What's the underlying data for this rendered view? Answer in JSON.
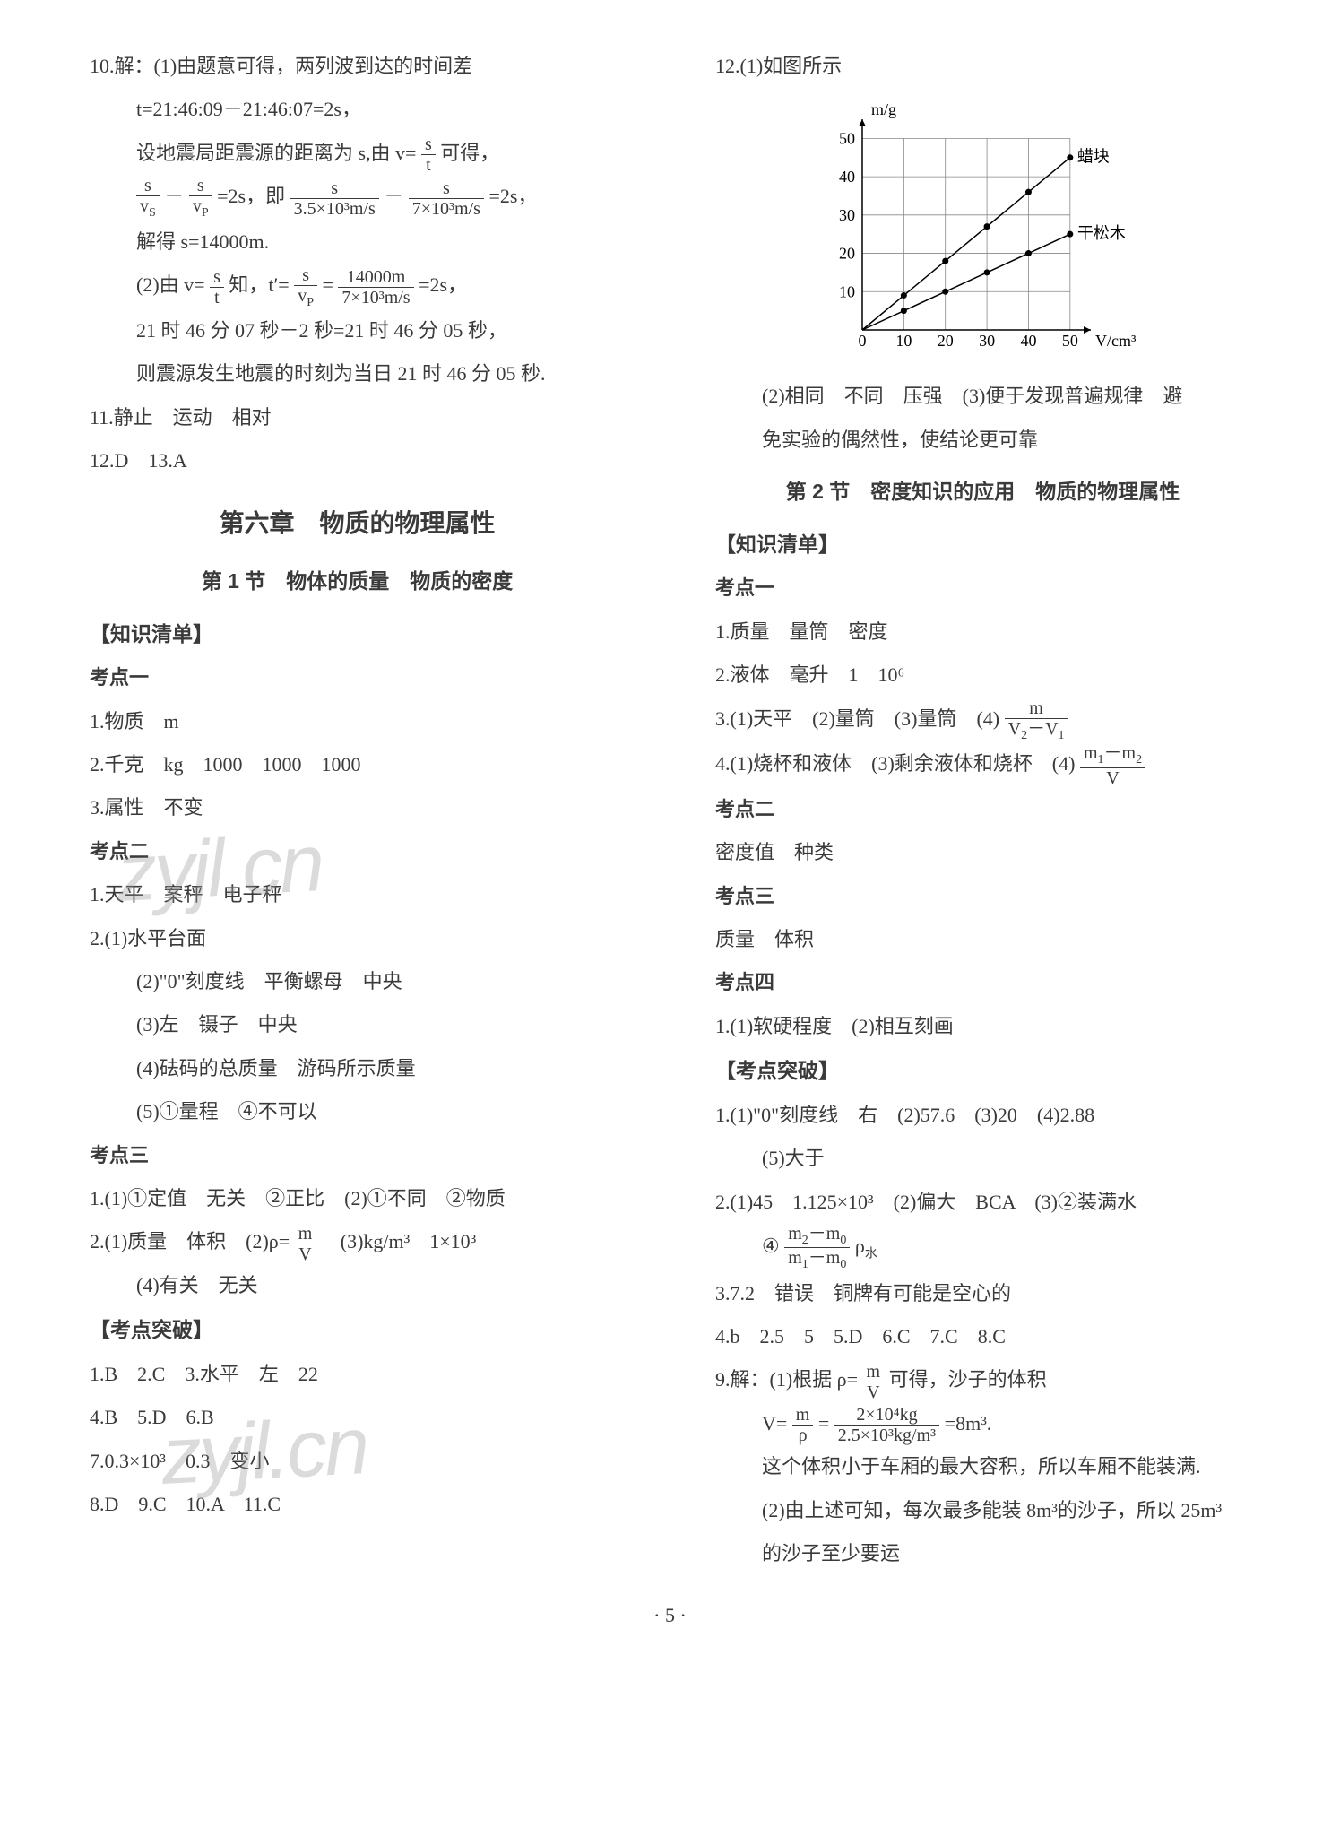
{
  "left": {
    "q10_intro": "10.解：(1)由题意可得，两列波到达的时间差",
    "q10_t": "t=21:46:09－21:46:07=2s，",
    "q10_set": "设地震局距震源的距离为 s,由 v=",
    "q10_set2": " 可得，",
    "q10_eq1_tail": "=2s，即",
    "q10_eq2_tail": "=2s，",
    "q10_solve": "解得 s=14000m.",
    "q10_p2a": "(2)由 v=",
    "q10_p2b": " 知，t′=",
    "q10_p2c": "=",
    "q10_p2d": "=2s，",
    "q10_time1": "21 时 46 分 07 秒－2 秒=21 时 46 分 05 秒，",
    "q10_time2": "则震源发生地震的时刻为当日 21 时 46 分 05 秒.",
    "q11": "11.静止　运动　相对",
    "q12_13": "12.D　13.A",
    "chapter": "第六章　物质的物理属性",
    "section1": "第 1 节　物体的质量　物质的密度",
    "zsqd": "【知识清单】",
    "kd1": "考点一",
    "k1_1": "1.物质　m",
    "k1_2": "2.千克　kg　1000　1000　1000",
    "k1_3": "3.属性　不变",
    "kd2": "考点二",
    "k2_1": "1.天平　案秤　电子秤",
    "k2_2": "2.(1)水平台面",
    "k2_2_2": "(2)\"0\"刻度线　平衡螺母　中央",
    "k2_2_3": "(3)左　镊子　中央",
    "k2_2_4": "(4)砝码的总质量　游码所示质量",
    "k2_2_5": "(5)①量程　④不可以",
    "kd3": "考点三",
    "k3_1": "1.(1)①定值　无关　②正比　(2)①不同　②物质",
    "k3_2a": "2.(1)质量　体积　(2)ρ=",
    "k3_2b": "　(3)kg/m³　1×10³",
    "k3_2_4": "(4)有关　无关",
    "kdtp": "【考点突破】",
    "t1_3": "1.B　2.C　3.水平　左　22",
    "t4_6": "4.B　5.D　6.B",
    "t7": "7.0.3×10³　0.3　变小",
    "t8_11": "8.D　9.C　10.A　11.C"
  },
  "right": {
    "q12": "12.(1)如图所示",
    "chart": {
      "type": "scatter-line",
      "xlabel": "V/cm³",
      "ylabel": "m/g",
      "xlim": [
        0,
        55
      ],
      "ylim": [
        0,
        55
      ],
      "xticks": [
        0,
        10,
        20,
        30,
        40,
        50
      ],
      "yticks": [
        0,
        10,
        20,
        30,
        40,
        50
      ],
      "series": [
        {
          "name": "蜡块",
          "points": [
            [
              0,
              0
            ],
            [
              10,
              9
            ],
            [
              20,
              18
            ],
            [
              30,
              27
            ],
            [
              40,
              36
            ],
            [
              50,
              45
            ]
          ],
          "color": "#000000"
        },
        {
          "name": "干松木",
          "points": [
            [
              0,
              0
            ],
            [
              10,
              5
            ],
            [
              20,
              10
            ],
            [
              30,
              15
            ],
            [
              40,
              20
            ],
            [
              50,
              25
            ]
          ],
          "color": "#000000"
        }
      ],
      "grid_color": "#888888",
      "background": "#ffffff",
      "label_fontsize": 18
    },
    "q12_2": "(2)相同　不同　压强　(3)便于发现普遍规律　避",
    "q12_2b": "免实验的偶然性，使结论更可靠",
    "section2": "第 2 节　密度知识的应用　物质的物理属性",
    "zsqd": "【知识清单】",
    "kd1": "考点一",
    "r1": "1.质量　量筒　密度",
    "r2": "2.液体　毫升　1　10⁶",
    "r3a": "3.(1)天平　(2)量筒　(3)量筒　(4)",
    "r4a": "4.(1)烧杯和液体　(3)剩余液体和烧杯　(4)",
    "kd2": "考点二",
    "r_kd2": "密度值　种类",
    "kd3": "考点三",
    "r_kd3": "质量　体积",
    "kd4": "考点四",
    "r_kd4": "1.(1)软硬程度　(2)相互刻画",
    "kdtp": "【考点突破】",
    "rt1": "1.(1)\"0\"刻度线　右　(2)57.6　(3)20　(4)2.88",
    "rt1_5": "(5)大于",
    "rt2": "2.(1)45　1.125×10³　(2)偏大　BCA　(3)②装满水",
    "rt2_4a": "④",
    "rt2_4b": "ρ水",
    "rt3": "3.7.2　错误　铜牌有可能是空心的",
    "rt4_8": "4.b　2.5　5　5.D　6.C　7.C　8.C",
    "rt9a": "9.解：(1)根据 ρ=",
    "rt9b": " 可得，沙子的体积",
    "rt9_Va": "V=",
    "rt9_Vb": "=",
    "rt9_Vc": "=8m³.",
    "rt9_2": "这个体积小于车厢的最大容积，所以车厢不能装满.",
    "rt9_3": "(2)由上述可知，每次最多能装 8m³的沙子，所以 25m³",
    "rt9_4": "的沙子至少要运"
  },
  "fracs": {
    "s_t_n": "s",
    "s_t_d": "t",
    "s_vs_n": "s",
    "s_vs_d": "vS",
    "s_vp_n": "s",
    "s_vp_d": "vP",
    "f1_n": "s",
    "f1_d": "3.5×10³m/s",
    "f2_n": "s",
    "f2_d": "7×10³m/s",
    "f3_n": "14000m",
    "f3_d": "7×10³m/s",
    "mv_n": "m",
    "mv_d": "V",
    "mv21_n": "m",
    "mv21_d": "V₂－V₁",
    "m12v_n": "m₁－m₂",
    "m12v_d": "V",
    "m20_n": "m₂－m₀",
    "m20_d": "m₁－m₀",
    "mrho_n": "m",
    "mrho_d": "ρ",
    "big_n": "2×10⁴kg",
    "big_d": "2.5×10³kg/m³"
  },
  "watermarks": {
    "w1": "zyjl.cn",
    "w2": "zyjl.cn"
  },
  "page": "· 5 ·"
}
